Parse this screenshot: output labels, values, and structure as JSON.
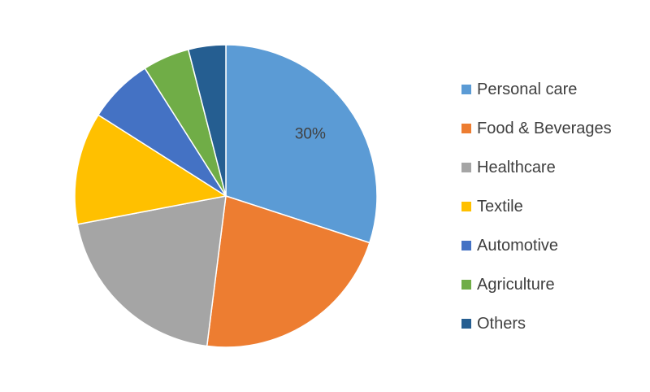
{
  "chart_data": {
    "type": "pie",
    "start_angle_deg": 0,
    "direction": "clockwise",
    "slices": [
      {
        "label": "Personal care",
        "value": 30,
        "color": "#5B9BD5",
        "data_label": "30%"
      },
      {
        "label": "Food & Beverages",
        "value": 22,
        "color": "#ED7D31",
        "data_label": ""
      },
      {
        "label": "Healthcare",
        "value": 20,
        "color": "#A5A5A5",
        "data_label": ""
      },
      {
        "label": "Textile",
        "value": 12,
        "color": "#FFC000",
        "data_label": ""
      },
      {
        "label": "Automotive",
        "value": 7,
        "color": "#4472C4",
        "data_label": ""
      },
      {
        "label": "Agriculture",
        "value": 5,
        "color": "#70AD47",
        "data_label": ""
      },
      {
        "label": "Others",
        "value": 4,
        "color": "#255E91",
        "data_label": ""
      }
    ],
    "legend_position": "right"
  }
}
